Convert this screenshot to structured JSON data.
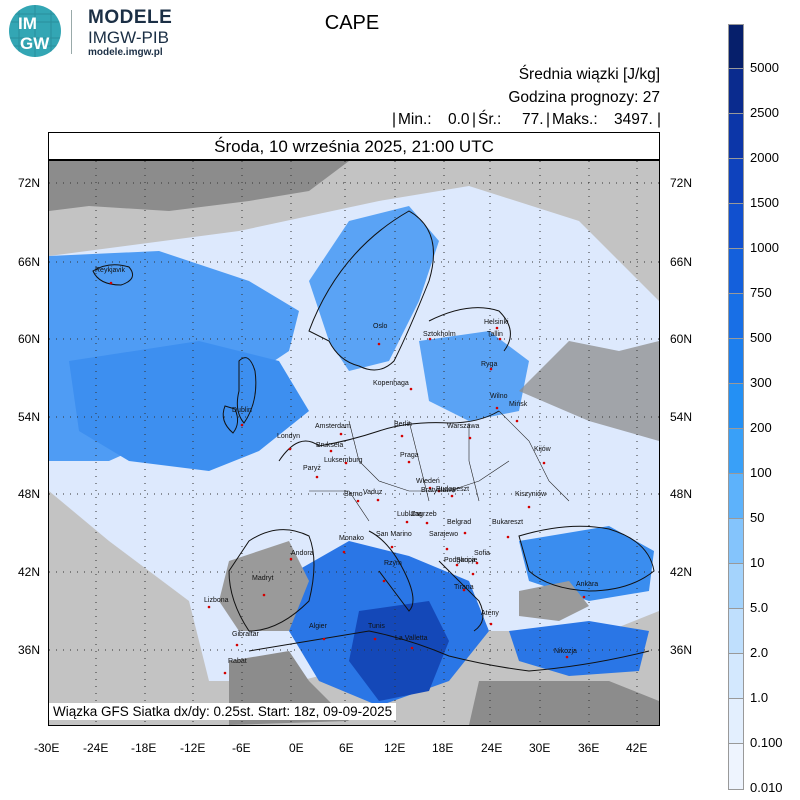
{
  "header": {
    "brand_name": "MODELE",
    "brand_org": "IMGW-PIB",
    "brand_site": "modele.imgw.pl",
    "logo_text_top": "IM",
    "logo_text_bottom": "GW",
    "field_title": "CAPE"
  },
  "info": {
    "product": "Średnia wiązki [J/kg]",
    "forecast_hour": "Godzina prognozy: 27",
    "stats": {
      "min_label": "Min.:",
      "min_value": "0.0",
      "mean_label": "Śr.:",
      "mean_value": "77.",
      "max_label": "Maks.:",
      "max_value": "3497."
    }
  },
  "map": {
    "valid_time": "Środa, 10 września 2025, 21:00 UTC",
    "footer": "Wiązka GFS Siatka dx/dy: 0.25st. Start: 18z, 09-09-2025",
    "lat_ticks": [
      "72N",
      "66N",
      "60N",
      "54N",
      "48N",
      "42N",
      "36N"
    ],
    "lon_ticks": [
      "-30E",
      "-24E",
      "-18E",
      "-12E",
      "-6E",
      "0E",
      "6E",
      "12E",
      "18E",
      "24E",
      "30E",
      "36E",
      "42E"
    ],
    "cities": [
      "Reykjavik",
      "Oslo",
      "Sztokholm",
      "Helsinki",
      "Tallin",
      "Ryga",
      "Kopenhaga",
      "Wilno",
      "Mińsk",
      "Dublin",
      "Amsterdam",
      "Berlin",
      "Warszawa",
      "Londyn",
      "Bruksela",
      "Luksemburg",
      "Praga",
      "Kijów",
      "Paryż",
      "Wiedeń",
      "Bratysława",
      "Budapeszt",
      "Berno",
      "Vaduz",
      "Kiszyniów",
      "Lublana",
      "Zagrzeb",
      "Belgrad",
      "Bukareszt",
      "Monako",
      "San Marino",
      "Sarajewo",
      "Andora",
      "Sofia",
      "Podgorica",
      "Skopje",
      "Rzym",
      "Tirana",
      "Madryt",
      "Ankara",
      "Lizbona",
      "Ateny",
      "Algier",
      "Tunis",
      "La Valletta",
      "Gibraltar",
      "Nikozja",
      "Rabat"
    ]
  },
  "colorbar": {
    "levels": [
      "5000",
      "2500",
      "2000",
      "1500",
      "1000",
      "750",
      "500",
      "300",
      "200",
      "100",
      "50",
      "10",
      "5.0",
      "2.0",
      "1.0",
      "0.100",
      "0.010"
    ],
    "colors": [
      "#061f6b",
      "#0a2b8e",
      "#0c36a8",
      "#0e42bd",
      "#1150cf",
      "#1460dc",
      "#186fe6",
      "#1d7fee",
      "#2490f4",
      "#39a0f8",
      "#5db2fb",
      "#84c4fc",
      "#a4d3fc",
      "#bfdffd",
      "#d3e8fe",
      "#e3effe",
      "#eef4fe"
    ]
  },
  "colors": {
    "land_gray": "#8c8c8c",
    "sea_gray": "#c3c3c3",
    "light_blue": "#dde9fd",
    "mid_blue": "#4f9cf4",
    "dark_blue": "#1448b8"
  }
}
